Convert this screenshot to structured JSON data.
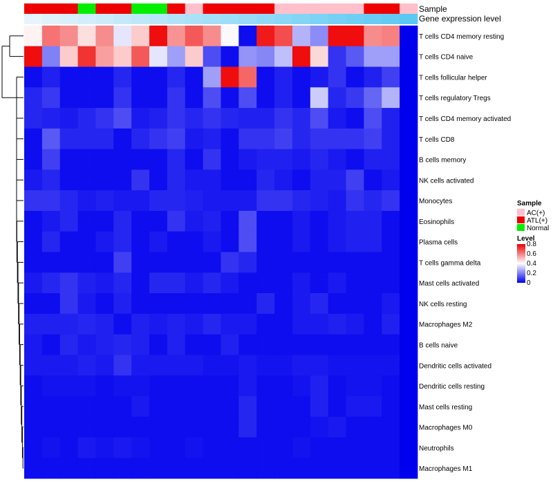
{
  "chart_data": {
    "type": "heatmap",
    "title": "",
    "annotation_labels": {
      "sample": "Sample",
      "expression": "Gene expression level"
    },
    "sample_legend": {
      "title": "Sample",
      "items": [
        {
          "label": "AC(+)",
          "color": "#FFC0CB"
        },
        {
          "label": "ATL(+)",
          "color": "#EE0000"
        },
        {
          "label": "Normal",
          "color": "#00EE00"
        }
      ]
    },
    "level_legend": {
      "title": "Level",
      "ticks": [
        "0.8",
        "0.6",
        "0.4",
        "0.2",
        "0"
      ],
      "tick_values": [
        0.8,
        0.6,
        0.4,
        0.2,
        0
      ],
      "range": [
        0,
        0.8
      ],
      "colors": {
        "low": "#0000EE",
        "mid": "#FFFFFF",
        "high": "#EE0000"
      }
    },
    "sample_groups": [
      "ATL(+)",
      "ATL(+)",
      "ATL(+)",
      "Normal",
      "ATL(+)",
      "ATL(+)",
      "Normal",
      "Normal",
      "ATL(+)",
      "AC(+)",
      "ATL(+)",
      "ATL(+)",
      "ATL(+)",
      "ATL(+)",
      "AC(+)",
      "AC(+)",
      "AC(+)",
      "AC(+)",
      "AC(+)",
      "ATL(+)",
      "ATL(+)",
      "AC(+)"
    ],
    "expression_level": [
      0.0,
      0.05,
      0.1,
      0.14,
      0.19,
      0.24,
      0.29,
      0.33,
      0.38,
      0.43,
      0.48,
      0.52,
      0.57,
      0.62,
      0.67,
      0.71,
      0.76,
      0.81,
      0.86,
      0.9,
      0.95,
      1.0
    ],
    "row_dendrogram": "hierarchical clustering of rows (two top branches: CD4 memory resting + CD4 naive vs. all others)",
    "rows": [
      "T cells CD4 memory resting",
      "T cells CD4 naive",
      "T cells follicular helper",
      "T cells regulatory  Tregs",
      "T cells CD4 memory activated",
      "T cells CD8",
      "B cells memory",
      "NK cells activated",
      "Monocytes",
      "Eosinophils",
      "Plasma cells",
      "T cells gamma delta",
      "Mast cells activated",
      "NK cells resting",
      "Macrophages M2",
      "B cells naive",
      "Dendritic cells activated",
      "Dendritic cells resting",
      "Mast cells resting",
      "Macrophages M0",
      "Neutrophils",
      "Macrophages M1"
    ],
    "values": [
      [
        0.42,
        0.62,
        0.58,
        0.45,
        0.58,
        0.36,
        0.48,
        0.78,
        0.57,
        0.66,
        0.58,
        0.39,
        0.02,
        0.76,
        0.68,
        0.28,
        0.22,
        0.78,
        0.78,
        0.58,
        0.6,
        0.0
      ],
      [
        0.78,
        0.2,
        0.48,
        0.72,
        0.55,
        0.48,
        0.66,
        0.36,
        0.25,
        0.48,
        0.12,
        0.02,
        0.23,
        0.21,
        0.3,
        0.78,
        0.46,
        0.08,
        0.14,
        0.25,
        0.25,
        0.0
      ],
      [
        0.02,
        0.05,
        0.02,
        0.02,
        0.02,
        0.06,
        0.02,
        0.02,
        0.06,
        0.02,
        0.25,
        0.78,
        0.64,
        0.02,
        0.05,
        0.02,
        0.04,
        0.08,
        0.02,
        0.05,
        0.1,
        0.0
      ],
      [
        0.06,
        0.09,
        0.02,
        0.02,
        0.02,
        0.08,
        0.02,
        0.02,
        0.08,
        0.02,
        0.12,
        0.02,
        0.12,
        0.02,
        0.05,
        0.02,
        0.32,
        0.06,
        0.09,
        0.16,
        0.28,
        0.0
      ],
      [
        0.06,
        0.05,
        0.04,
        0.06,
        0.08,
        0.12,
        0.04,
        0.05,
        0.08,
        0.06,
        0.08,
        0.06,
        0.05,
        0.05,
        0.08,
        0.06,
        0.12,
        0.04,
        0.02,
        0.12,
        0.05,
        0.0
      ],
      [
        0.02,
        0.14,
        0.06,
        0.06,
        0.06,
        0.02,
        0.06,
        0.08,
        0.1,
        0.04,
        0.05,
        0.02,
        0.08,
        0.08,
        0.1,
        0.06,
        0.08,
        0.08,
        0.08,
        0.1,
        0.05,
        0.0
      ],
      [
        0.02,
        0.1,
        0.02,
        0.02,
        0.02,
        0.02,
        0.02,
        0.02,
        0.06,
        0.02,
        0.08,
        0.02,
        0.04,
        0.05,
        0.05,
        0.04,
        0.06,
        0.04,
        0.02,
        0.05,
        0.05,
        0.0
      ],
      [
        0.04,
        0.06,
        0.02,
        0.02,
        0.02,
        0.02,
        0.08,
        0.02,
        0.06,
        0.04,
        0.04,
        0.02,
        0.02,
        0.06,
        0.04,
        0.02,
        0.05,
        0.05,
        0.1,
        0.02,
        0.04,
        0.0
      ],
      [
        0.08,
        0.08,
        0.06,
        0.04,
        0.05,
        0.04,
        0.04,
        0.06,
        0.06,
        0.05,
        0.04,
        0.04,
        0.04,
        0.08,
        0.08,
        0.06,
        0.05,
        0.04,
        0.08,
        0.06,
        0.08,
        0.0
      ],
      [
        0.02,
        0.04,
        0.06,
        0.02,
        0.02,
        0.06,
        0.02,
        0.02,
        0.08,
        0.04,
        0.05,
        0.02,
        0.12,
        0.02,
        0.02,
        0.04,
        0.02,
        0.04,
        0.05,
        0.05,
        0.02,
        0.0
      ],
      [
        0.02,
        0.06,
        0.02,
        0.02,
        0.04,
        0.06,
        0.02,
        0.04,
        0.02,
        0.02,
        0.04,
        0.02,
        0.12,
        0.02,
        0.02,
        0.04,
        0.02,
        0.04,
        0.05,
        0.05,
        0.02,
        0.0
      ],
      [
        0.02,
        0.02,
        0.02,
        0.02,
        0.02,
        0.1,
        0.02,
        0.02,
        0.02,
        0.02,
        0.02,
        0.08,
        0.06,
        0.02,
        0.02,
        0.02,
        0.02,
        0.02,
        0.02,
        0.02,
        0.02,
        0.0
      ],
      [
        0.04,
        0.06,
        0.08,
        0.05,
        0.04,
        0.06,
        0.02,
        0.06,
        0.06,
        0.04,
        0.06,
        0.04,
        0.02,
        0.02,
        0.02,
        0.04,
        0.02,
        0.04,
        0.02,
        0.02,
        0.02,
        0.0
      ],
      [
        0.02,
        0.02,
        0.08,
        0.04,
        0.02,
        0.05,
        0.02,
        0.02,
        0.02,
        0.02,
        0.02,
        0.02,
        0.02,
        0.06,
        0.02,
        0.04,
        0.06,
        0.02,
        0.02,
        0.02,
        0.04,
        0.0
      ],
      [
        0.05,
        0.05,
        0.05,
        0.06,
        0.05,
        0.02,
        0.05,
        0.04,
        0.05,
        0.04,
        0.06,
        0.04,
        0.04,
        0.02,
        0.02,
        0.04,
        0.04,
        0.05,
        0.04,
        0.02,
        0.05,
        0.0
      ],
      [
        0.04,
        0.02,
        0.06,
        0.04,
        0.05,
        0.06,
        0.05,
        0.02,
        0.05,
        0.02,
        0.02,
        0.05,
        0.02,
        0.02,
        0.02,
        0.02,
        0.02,
        0.02,
        0.02,
        0.02,
        0.02,
        0.0
      ],
      [
        0.04,
        0.04,
        0.04,
        0.05,
        0.04,
        0.08,
        0.04,
        0.04,
        0.04,
        0.04,
        0.03,
        0.03,
        0.04,
        0.03,
        0.03,
        0.04,
        0.04,
        0.03,
        0.03,
        0.03,
        0.03,
        0.0
      ],
      [
        0.02,
        0.03,
        0.03,
        0.03,
        0.02,
        0.03,
        0.03,
        0.02,
        0.02,
        0.02,
        0.02,
        0.02,
        0.04,
        0.02,
        0.02,
        0.03,
        0.05,
        0.02,
        0.03,
        0.03,
        0.02,
        0.0
      ],
      [
        0.02,
        0.02,
        0.02,
        0.02,
        0.02,
        0.02,
        0.04,
        0.02,
        0.02,
        0.02,
        0.02,
        0.02,
        0.06,
        0.02,
        0.02,
        0.02,
        0.05,
        0.02,
        0.04,
        0.04,
        0.02,
        0.0
      ],
      [
        0.02,
        0.02,
        0.02,
        0.02,
        0.02,
        0.02,
        0.02,
        0.02,
        0.02,
        0.02,
        0.02,
        0.02,
        0.06,
        0.02,
        0.02,
        0.02,
        0.03,
        0.04,
        0.02,
        0.02,
        0.02,
        0.0
      ],
      [
        0.02,
        0.03,
        0.02,
        0.04,
        0.03,
        0.04,
        0.03,
        0.02,
        0.02,
        0.03,
        0.02,
        0.02,
        0.02,
        0.02,
        0.02,
        0.03,
        0.02,
        0.02,
        0.02,
        0.02,
        0.02,
        0.0
      ],
      [
        0.02,
        0.02,
        0.02,
        0.02,
        0.02,
        0.02,
        0.02,
        0.02,
        0.02,
        0.02,
        0.02,
        0.02,
        0.02,
        0.02,
        0.02,
        0.02,
        0.02,
        0.02,
        0.02,
        0.02,
        0.02,
        0.0
      ]
    ]
  }
}
